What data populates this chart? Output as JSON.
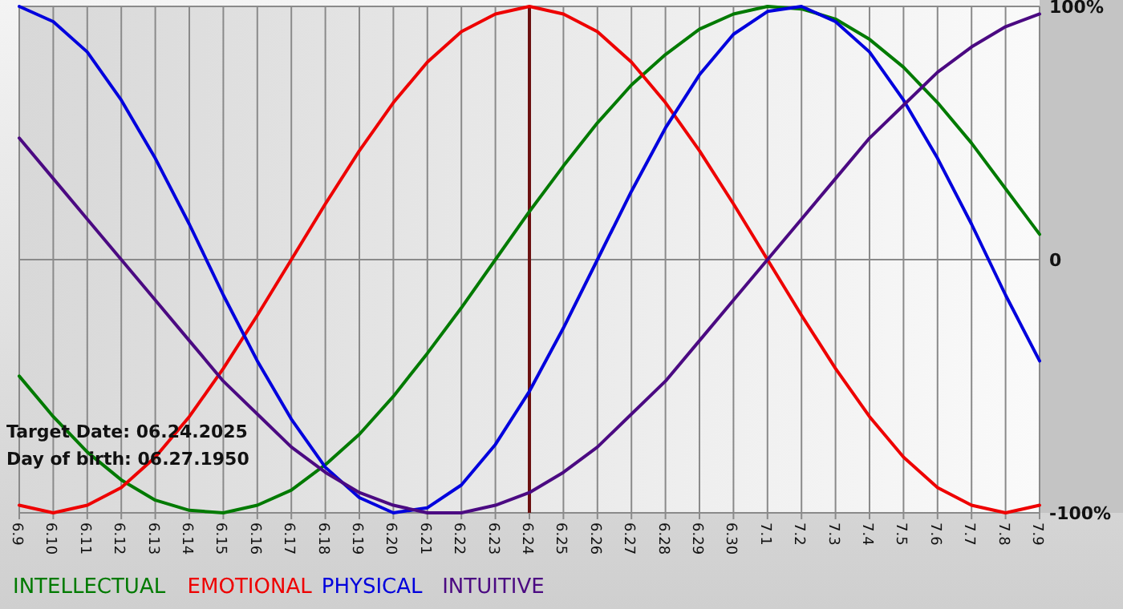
{
  "chart_data": {
    "type": "line",
    "categories": [
      "6.9",
      "6.10",
      "6.11",
      "6.12",
      "6.13",
      "6.14",
      "6.15",
      "6.16",
      "6.17",
      "6.18",
      "6.19",
      "6.20",
      "6.21",
      "6.22",
      "6.23",
      "6.24",
      "6.25",
      "6.26",
      "6.27",
      "6.28",
      "6.29",
      "6.30",
      "7.1",
      "7.2",
      "7.3",
      "7.4",
      "7.5",
      "7.6",
      "7.7",
      "7.8",
      "7.9"
    ],
    "series": [
      {
        "name": "INTELLECTUAL",
        "color": "#007a00",
        "values": [
          -46,
          -62,
          -76,
          -87,
          -95,
          -99,
          -100,
          -97,
          -91,
          -81,
          -69,
          -54,
          -37,
          -19,
          0,
          19,
          37,
          54,
          69,
          81,
          91,
          97,
          100,
          99,
          95,
          87,
          76,
          62,
          46,
          28,
          10
        ]
      },
      {
        "name": "EMOTIONAL",
        "color": "#ee0000",
        "values": [
          -97,
          -100,
          -97,
          -90,
          -78,
          -62,
          -43,
          -22,
          0,
          22,
          43,
          62,
          78,
          90,
          97,
          100,
          97,
          90,
          78,
          62,
          43,
          22,
          0,
          -22,
          -43,
          -62,
          -78,
          -90,
          -97,
          -100,
          -97
        ]
      },
      {
        "name": "PHYSICAL",
        "color": "#0000dd",
        "values": [
          100,
          94,
          82,
          63,
          40,
          14,
          -14,
          -40,
          -63,
          -82,
          -94,
          -100,
          -98,
          -89,
          -73,
          -52,
          -27,
          0,
          27,
          52,
          73,
          89,
          98,
          100,
          94,
          82,
          63,
          40,
          14,
          -14,
          -40
        ]
      },
      {
        "name": "INTUITIVE",
        "color": "#4b0a82",
        "values": [
          48,
          32,
          16,
          0,
          -16,
          -32,
          -48,
          -61,
          -74,
          -84,
          -92,
          -97,
          -100,
          -100,
          -97,
          -92,
          -84,
          -74,
          -61,
          -48,
          -32,
          -16,
          0,
          16,
          32,
          48,
          61,
          74,
          84,
          92,
          97
        ]
      }
    ],
    "ylim": [
      -100,
      100
    ],
    "yticks": [
      {
        "value": 100,
        "label": "100%"
      },
      0,
      {
        "value": -100,
        "label": "-100%"
      }
    ],
    "grid": true,
    "legend": "bottom",
    "ref_lines": [
      {
        "axis": "x",
        "value": "6.24",
        "color": "#6b1010"
      }
    ],
    "annotations": [
      "Target Date: 06.24.2025",
      "Day of birth: 06.27.1950"
    ]
  }
}
